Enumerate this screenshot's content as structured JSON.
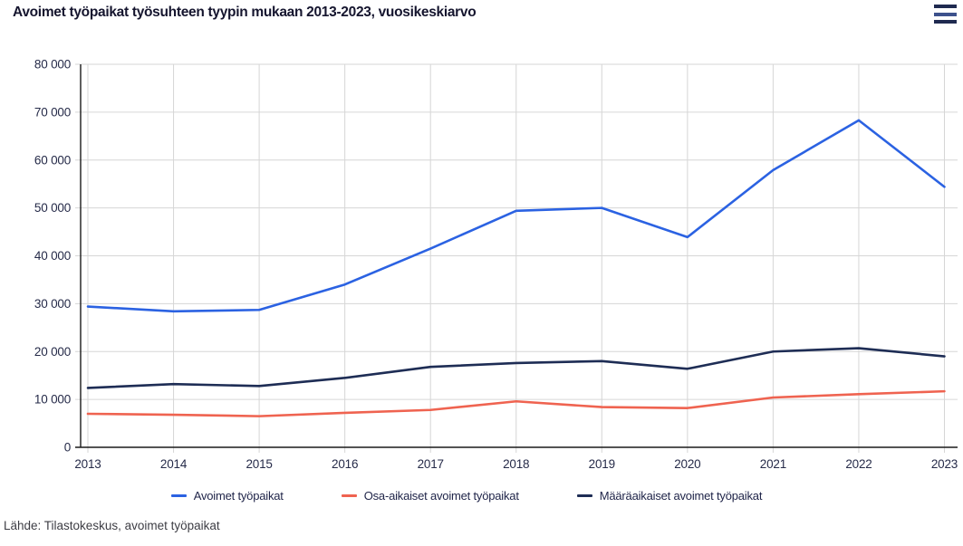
{
  "header": {
    "title": "Avoimet työpaikat työsuhteen tyypin mukaan 2013-2023, vuosikeskiarvo",
    "menu_icon": "hamburger-menu-icon"
  },
  "footer": {
    "source": "Lähde: Tilastokeskus, avoimet työpaikat"
  },
  "colors": {
    "series_blue": "#2b62e2",
    "series_red": "#ef6350",
    "series_navy": "#1e2d55",
    "grid": "#d6d6d6",
    "axis": "#1a1a1a",
    "tick_text": "#262b49"
  },
  "chart_data": {
    "type": "line",
    "title": "Avoimet työpaikat työsuhteen tyypin mukaan 2013-2023, vuosikeskiarvo",
    "x": [
      2013,
      2014,
      2015,
      2016,
      2017,
      2018,
      2019,
      2020,
      2021,
      2022,
      2023
    ],
    "series": [
      {
        "name": "Avoimet työpaikat",
        "color": "#2b62e2",
        "values": [
          29400,
          28400,
          28700,
          34000,
          41500,
          49400,
          50000,
          43900,
          57900,
          68300,
          54400
        ]
      },
      {
        "name": "Osa-aikaiset avoimet työpaikat",
        "color": "#ef6350",
        "values": [
          7000,
          6800,
          6500,
          7200,
          7800,
          9600,
          8400,
          8200,
          10400,
          11100,
          11700
        ]
      },
      {
        "name": "Määräaikaiset avoimet työpaikat",
        "color": "#1e2d55",
        "values": [
          12400,
          13200,
          12800,
          14500,
          16800,
          17600,
          18000,
          16400,
          20000,
          20700,
          19000
        ]
      }
    ],
    "ylim": [
      0,
      80000
    ],
    "yticks": [
      0,
      10000,
      20000,
      30000,
      40000,
      50000,
      60000,
      70000,
      80000
    ],
    "ytick_labels": [
      "0",
      "10 000",
      "20 000",
      "30 000",
      "40 000",
      "50 000",
      "60 000",
      "70 000",
      "80 000"
    ],
    "xlabel": "",
    "ylabel": "",
    "grid": true,
    "legend_position": "bottom",
    "source": "Lähde: Tilastokeskus, avoimet työpaikat"
  }
}
